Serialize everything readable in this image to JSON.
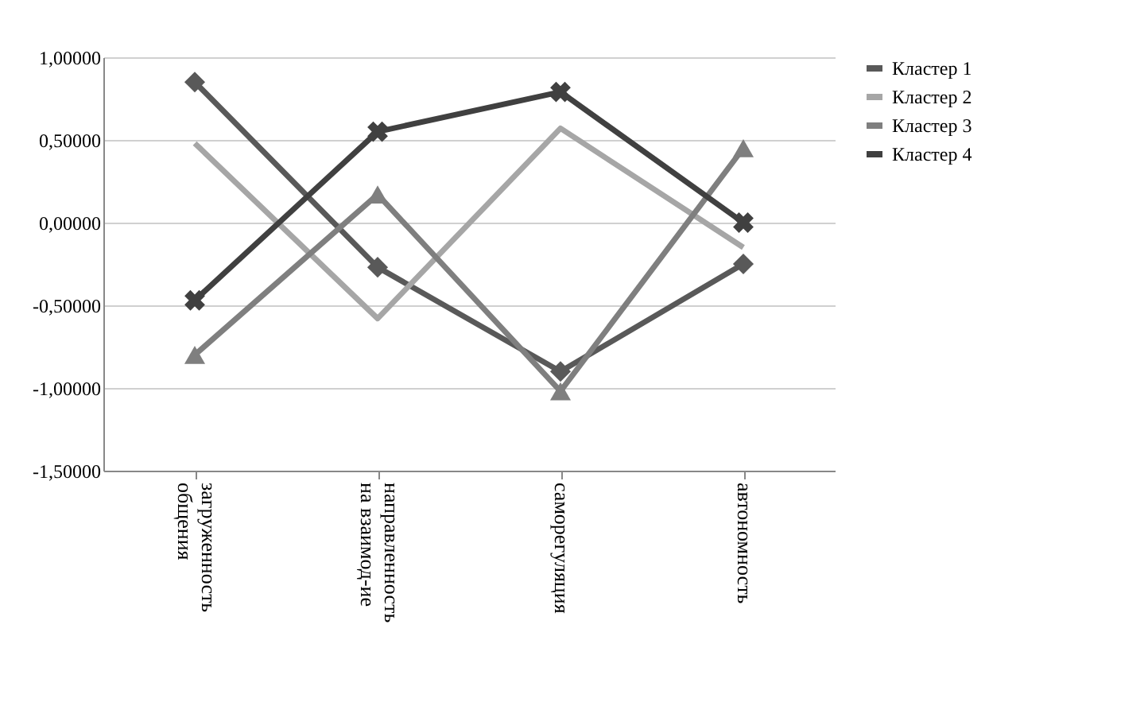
{
  "chart_data": {
    "type": "line",
    "categories": [
      "загруженность\nобщения",
      "направленность\nна взаимод-ие",
      "саморегуляция",
      "автономность"
    ],
    "series": [
      {
        "name": "Кластер 1",
        "color": "#595959",
        "marker": "diamond",
        "values": [
          0.85,
          -0.27,
          -0.9,
          -0.25
        ]
      },
      {
        "name": "Кластер 2",
        "color": "#a6a6a6",
        "marker": "none",
        "values": [
          0.48,
          -0.58,
          0.57,
          -0.15
        ]
      },
      {
        "name": "Кластер 3",
        "color": "#7f7f7f",
        "marker": "triangle",
        "values": [
          -0.8,
          0.17,
          -1.02,
          0.45
        ]
      },
      {
        "name": "Кластер 4",
        "color": "#404040",
        "marker": "cross",
        "values": [
          -0.47,
          0.55,
          0.79,
          0.0
        ]
      }
    ],
    "ylim": [
      -1.5,
      1.0
    ],
    "yticks": [
      {
        "value": -1.5,
        "label": "-1,50000"
      },
      {
        "value": -1.0,
        "label": "-1,00000"
      },
      {
        "value": -0.5,
        "label": "-0,50000"
      },
      {
        "value": 0.0,
        "label": "0,00000"
      },
      {
        "value": 0.5,
        "label": "0,50000"
      },
      {
        "value": 1.0,
        "label": "1,00000"
      }
    ],
    "grid": "y",
    "legend": "right",
    "line_style": "solid"
  }
}
